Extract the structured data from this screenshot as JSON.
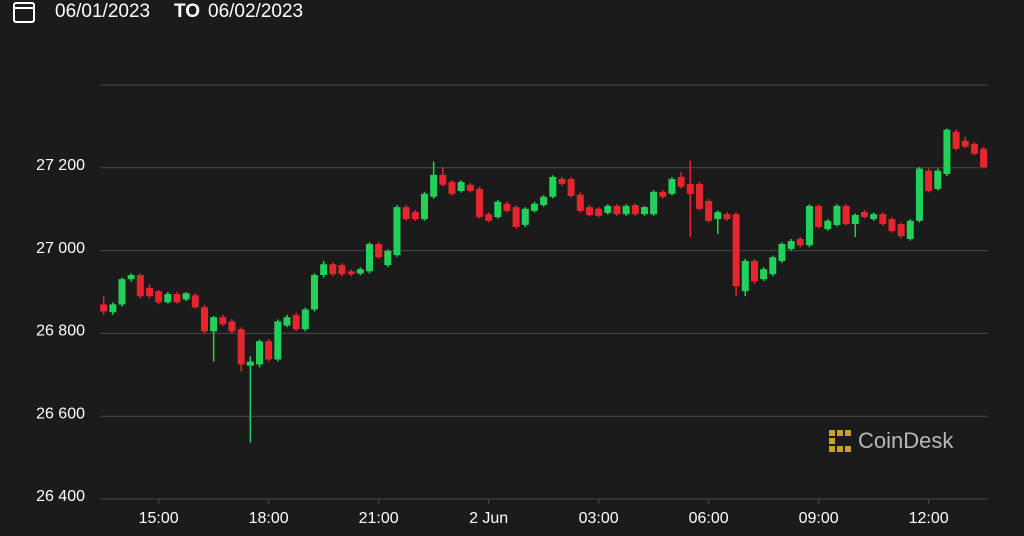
{
  "header": {
    "from": "06/01/2023",
    "to_word": "TO",
    "to": "06/02/2023"
  },
  "watermark": "CoinDesk",
  "chart_data": {
    "type": "candlestick",
    "up_color": "#21d15a",
    "down_color": "#e5262e",
    "grid": true,
    "xlim": [
      13.4,
      37.62
    ],
    "ylim": [
      26400,
      27400
    ],
    "xticks": [
      {
        "value": 15,
        "label": "15:00"
      },
      {
        "value": 18,
        "label": "18:00"
      },
      {
        "value": 21,
        "label": "21:00"
      },
      {
        "value": 24,
        "label": "2 Jun"
      },
      {
        "value": 27,
        "label": "03:00"
      },
      {
        "value": 30,
        "label": "06:00"
      },
      {
        "value": 33,
        "label": "09:00"
      },
      {
        "value": 36,
        "label": "12:00"
      }
    ],
    "yticks": [
      {
        "value": 26400,
        "label": "26 400"
      },
      {
        "value": 26600,
        "label": "26 600"
      },
      {
        "value": 26800,
        "label": "26 800"
      },
      {
        "value": 27000,
        "label": "27 000"
      },
      {
        "value": 27200,
        "label": "27 200"
      }
    ],
    "x": [
      13.5,
      13.75,
      14,
      14.25,
      14.5,
      14.75,
      15,
      15.25,
      15.5,
      15.75,
      16,
      16.25,
      16.5,
      16.75,
      17,
      17.25,
      17.5,
      17.75,
      18,
      18.25,
      18.5,
      18.75,
      19,
      19.25,
      19.5,
      19.75,
      20,
      20.25,
      20.5,
      20.75,
      21,
      21.25,
      21.5,
      21.75,
      22,
      22.25,
      22.5,
      22.75,
      23,
      23.25,
      23.5,
      23.75,
      24,
      24.25,
      24.5,
      24.75,
      25,
      25.25,
      25.5,
      25.75,
      26,
      26.25,
      26.5,
      26.75,
      27,
      27.25,
      27.5,
      27.75,
      28,
      28.25,
      28.5,
      28.75,
      29,
      29.25,
      29.5,
      29.75,
      30,
      30.25,
      30.5,
      30.75,
      31,
      31.25,
      31.5,
      31.75,
      32,
      32.25,
      32.5,
      32.75,
      33,
      33.25,
      33.5,
      33.75,
      34,
      34.25,
      34.5,
      34.75,
      35,
      35.25,
      35.5,
      35.75,
      36,
      36.25,
      36.5,
      36.75,
      37,
      37.25,
      37.5
    ],
    "open": [
      26870,
      26851,
      26870,
      26931,
      26941,
      26910,
      26902,
      26875,
      26895,
      26882,
      26892,
      26863,
      26805,
      26839,
      26829,
      26810,
      26722,
      26725,
      26781,
      26737,
      26819,
      26844,
      26810,
      26858,
      26941,
      26967,
      26965,
      26950,
      26945,
      26950,
      27016,
      26965,
      26989,
      27105,
      27093,
      27076,
      27130,
      27183,
      27166,
      27144,
      27159,
      27149,
      27088,
      27081,
      27113,
      27105,
      27062,
      27096,
      27110,
      27130,
      27173,
      27173,
      27135,
      27105,
      27101,
      27091,
      27108,
      27088,
      27110,
      27088,
      27088,
      27142,
      27137,
      27178,
      27161,
      27161,
      27120,
      27076,
      27088,
      27088,
      26902,
      26975,
      26931,
      26943,
      26975,
      27004,
      27028,
      27013,
      27108,
      27052,
      27062,
      27108,
      27064,
      27093,
      27076,
      27088,
      27076,
      27064,
      27028,
      27072,
      27193,
      27149,
      27185,
      27287,
      27265,
      27258,
      27246
    ],
    "high": [
      26890,
      26875,
      26935,
      26945,
      26945,
      26918,
      26905,
      26900,
      26900,
      26900,
      26897,
      26868,
      26842,
      26845,
      26834,
      26815,
      26745,
      26785,
      26786,
      26834,
      26845,
      26850,
      26862,
      26945,
      26975,
      26972,
      26970,
      26955,
      26960,
      27020,
      27020,
      27003,
      27110,
      27110,
      27098,
      27142,
      27215,
      27202,
      27170,
      27170,
      27163,
      27154,
      27093,
      27122,
      27118,
      27110,
      27105,
      27118,
      27134,
      27182,
      27178,
      27178,
      27140,
      27110,
      27105,
      27112,
      27112,
      27112,
      27114,
      27108,
      27146,
      27146,
      27178,
      27190,
      27217,
      27166,
      27125,
      27097,
      27093,
      27093,
      26980,
      26980,
      26960,
      26988,
      27020,
      27028,
      27033,
      27112,
      27112,
      27076,
      27112,
      27112,
      27090,
      27098,
      27092,
      27092,
      27080,
      27068,
      27076,
      27202,
      27198,
      27198,
      27295,
      27292,
      27275,
      27262,
      27250
    ],
    "low": [
      26845,
      26845,
      26865,
      26925,
      26885,
      26885,
      26870,
      26872,
      26872,
      26878,
      26860,
      26800,
      26732,
      26818,
      26800,
      26708,
      26536,
      26718,
      26732,
      26732,
      26815,
      26805,
      26805,
      26853,
      26935,
      26938,
      26938,
      26938,
      26940,
      26945,
      26980,
      26960,
      26985,
      27072,
      27072,
      27072,
      27125,
      27155,
      27133,
      27140,
      27140,
      27077,
      27068,
      27077,
      27092,
      27053,
      27057,
      27092,
      27106,
      27126,
      27156,
      27128,
      27092,
      27082,
      27080,
      27087,
      27084,
      27084,
      27084,
      27084,
      27084,
      27126,
      27133,
      27150,
      27033,
      27097,
      27068,
      27040,
      27072,
      26890,
      26890,
      26920,
      26926,
      26938,
      26970,
      27000,
      27008,
      27008,
      27053,
      27048,
      27058,
      27060,
      27033,
      27077,
      27072,
      27060,
      27043,
      27030,
      27024,
      27068,
      27140,
      27145,
      27180,
      27242,
      27248,
      27230,
      27200
    ],
    "close": [
      26853,
      26870,
      26931,
      26941,
      26890,
      26890,
      26875,
      26895,
      26875,
      26897,
      26863,
      26805,
      26839,
      26822,
      26805,
      26725,
      26732,
      26781,
      26737,
      26829,
      26839,
      26810,
      26858,
      26941,
      26967,
      26943,
      26943,
      26943,
      26955,
      27016,
      26984,
      26999,
      27105,
      27076,
      27076,
      27137,
      27183,
      27159,
      27137,
      27166,
      27144,
      27081,
      27072,
      27118,
      27096,
      27057,
      27101,
      27113,
      27130,
      27178,
      27161,
      27132,
      27096,
      27086,
      27084,
      27108,
      27088,
      27108,
      27088,
      27105,
      27142,
      27130,
      27173,
      27154,
      27137,
      27101,
      27072,
      27093,
      27076,
      26914,
      26975,
      26926,
      26955,
      26984,
      27016,
      27023,
      27013,
      27108,
      27057,
      27072,
      27108,
      27064,
      27086,
      27081,
      27088,
      27064,
      27047,
      27035,
      27072,
      27198,
      27144,
      27193,
      27292,
      27246,
      27251,
      27234,
      27202
    ]
  }
}
